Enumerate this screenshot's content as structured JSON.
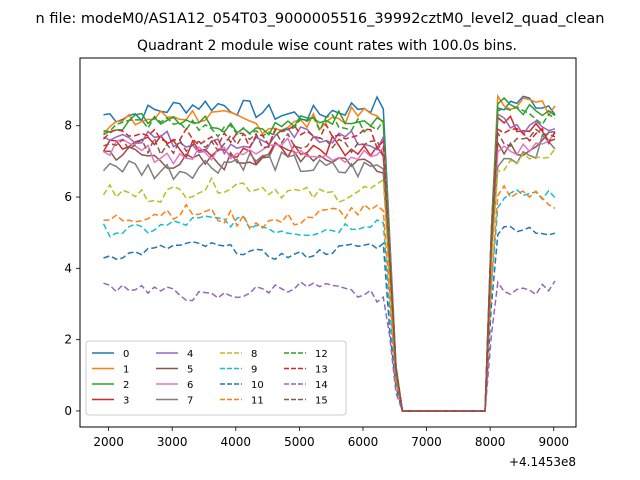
{
  "figure": {
    "suptitle": "n file: modeM0/AS1A12_054T03_9000005516_39992cztM0_level2_quad_clean",
    "offset_label": "+4.1453e8"
  },
  "chart_data": {
    "type": "line",
    "title": "Quadrant 2 module wise count rates with 100.0s bins.",
    "xlabel": "",
    "ylabel": "",
    "x_offset": 414530000,
    "xlim": [
      1550,
      9350
    ],
    "ylim": [
      -0.45,
      9.9
    ],
    "xticks": [
      2000,
      3000,
      4000,
      5000,
      6000,
      7000,
      8000,
      9000
    ],
    "yticks": [
      0,
      2,
      4,
      6,
      8
    ],
    "grid": false,
    "legend": {
      "placement": "lower-left",
      "columns": 4
    },
    "gap": {
      "start": 6620,
      "end": 8010
    },
    "x_range": [
      1920,
      9020
    ],
    "x_step": 100,
    "series": [
      {
        "name": "0",
        "color": "#1f77b4",
        "dash": "solid",
        "level": 8.45,
        "end_level": 8.5,
        "noise": 0.25
      },
      {
        "name": "1",
        "color": "#ff7f0e",
        "dash": "solid",
        "level": 8.15,
        "end_level": 8.5,
        "noise": 0.25
      },
      {
        "name": "2",
        "color": "#2ca02c",
        "dash": "solid",
        "level": 8.1,
        "end_level": 8.4,
        "noise": 0.22
      },
      {
        "name": "3",
        "color": "#d62728",
        "dash": "solid",
        "level": 7.3,
        "end_level": 8.0,
        "noise": 0.28
      },
      {
        "name": "4",
        "color": "#9467bd",
        "dash": "solid",
        "level": 7.6,
        "end_level": 8.1,
        "noise": 0.25
      },
      {
        "name": "5",
        "color": "#8c564b",
        "dash": "solid",
        "level": 7.1,
        "end_level": 7.6,
        "noise": 0.28
      },
      {
        "name": "6",
        "color": "#e377c2",
        "dash": "solid",
        "level": 7.3,
        "end_level": 7.5,
        "noise": 0.25
      },
      {
        "name": "7",
        "color": "#7f7f7f",
        "dash": "solid",
        "level": 6.9,
        "end_level": 7.3,
        "noise": 0.3
      },
      {
        "name": "8",
        "color": "#bcbd22",
        "dash": "dashed",
        "level": 6.2,
        "end_level": 7.0,
        "noise": 0.22
      },
      {
        "name": "9",
        "color": "#17becf",
        "dash": "dashed",
        "level": 5.2,
        "end_level": 5.9,
        "noise": 0.18
      },
      {
        "name": "10",
        "color": "#1f77b4",
        "dash": "dashed",
        "level": 4.5,
        "end_level": 4.95,
        "noise": 0.12
      },
      {
        "name": "11",
        "color": "#ff7f0e",
        "dash": "dashed",
        "level": 5.45,
        "end_level": 6.0,
        "noise": 0.22
      },
      {
        "name": "12",
        "color": "#2ca02c",
        "dash": "dashed",
        "level": 7.95,
        "end_level": 8.4,
        "noise": 0.22
      },
      {
        "name": "13",
        "color": "#d62728",
        "dash": "dashed",
        "level": 7.7,
        "end_level": 7.9,
        "noise": 0.25
      },
      {
        "name": "14",
        "color": "#9467bd",
        "dash": "dashed",
        "level": 3.35,
        "end_level": 3.55,
        "noise": 0.16
      },
      {
        "name": "15",
        "color": "#8c564b",
        "dash": "dashed",
        "level": 7.5,
        "end_level": 7.8,
        "noise": 0.25
      }
    ]
  }
}
